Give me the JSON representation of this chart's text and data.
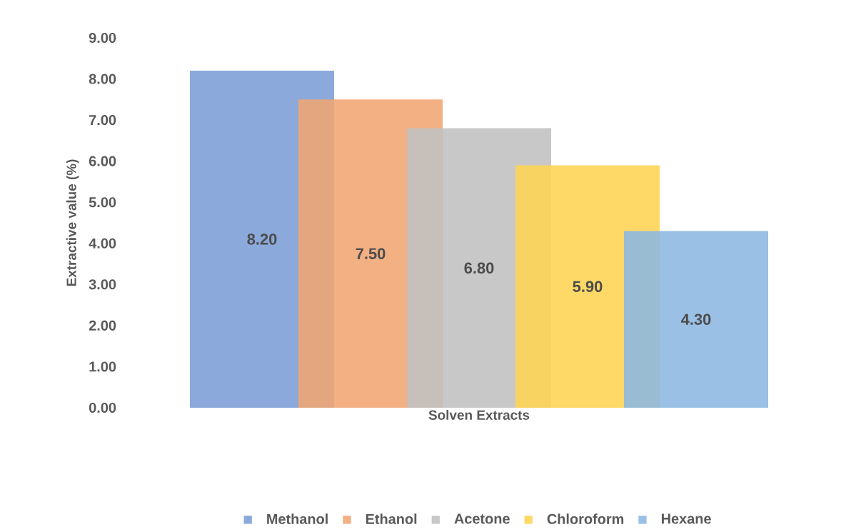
{
  "chart_data": {
    "type": "bar",
    "xlabel": "Solven Extracts",
    "ylabel": "Extractive value (%)",
    "categories": [
      null
    ],
    "series": [
      {
        "name": "Methanol",
        "color": "#7b9dd6",
        "values": [
          8.2
        ],
        "value_labels": [
          "8.20"
        ]
      },
      {
        "name": "Ethanol",
        "color": "#f0a572",
        "values": [
          7.5
        ],
        "value_labels": [
          "7.50"
        ]
      },
      {
        "name": "Acetone",
        "color": "#c0c0c0",
        "values": [
          6.8
        ],
        "value_labels": [
          "6.80"
        ]
      },
      {
        "name": "Chloroform",
        "color": "#fed452",
        "values": [
          5.9
        ],
        "value_labels": [
          "5.90"
        ]
      },
      {
        "name": "Hexane",
        "color": "#8cb7e1",
        "values": [
          4.3
        ],
        "value_labels": [
          "4.30"
        ]
      }
    ],
    "ylim": [
      0,
      9
    ],
    "yticks": [
      {
        "value": 0,
        "label": "0.00"
      },
      {
        "value": 1,
        "label": "1.00"
      },
      {
        "value": 2,
        "label": "2.00"
      },
      {
        "value": 3,
        "label": "3.00"
      },
      {
        "value": 4,
        "label": "4.00"
      },
      {
        "value": 5,
        "label": "5.00"
      },
      {
        "value": 6,
        "label": "6.00"
      },
      {
        "value": 7,
        "label": "7.00"
      },
      {
        "value": 8,
        "label": "8.00"
      },
      {
        "value": 9,
        "label": "9.00"
      }
    ],
    "grid": false,
    "legend": "bottom"
  }
}
